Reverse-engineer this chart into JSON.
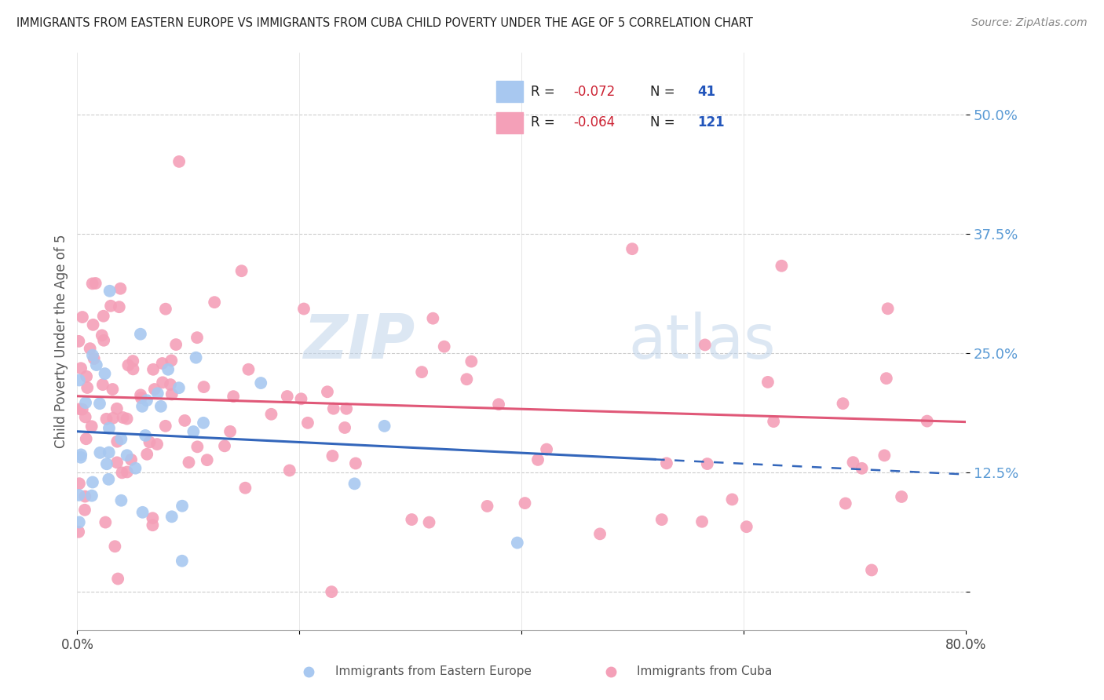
{
  "title": "IMMIGRANTS FROM EASTERN EUROPE VS IMMIGRANTS FROM CUBA CHILD POVERTY UNDER THE AGE OF 5 CORRELATION CHART",
  "source": "Source: ZipAtlas.com",
  "ylabel": "Child Poverty Under the Age of 5",
  "yticks": [
    0.0,
    0.125,
    0.25,
    0.375,
    0.5
  ],
  "ytick_labels": [
    "",
    "12.5%",
    "25.0%",
    "37.5%",
    "50.0%"
  ],
  "xlim": [
    0.0,
    0.8
  ],
  "ylim": [
    -0.04,
    0.565
  ],
  "color_eastern": "#a8c8f0",
  "color_cuba": "#f4a0b8",
  "trend_color_eastern": "#3366bb",
  "trend_color_cuba": "#e05878",
  "watermark_zip": "ZIP",
  "watermark_atlas": "atlas",
  "legend_items": [
    {
      "label_r": "R = ",
      "val_r": "-0.072",
      "label_n": "N = ",
      "val_n": " 41",
      "color": "#a8c8f0"
    },
    {
      "label_r": "R = ",
      "val_r": "-0.064",
      "label_n": "N = ",
      "val_n": "121",
      "color": "#f4a0b8"
    }
  ],
  "blue_trend_start_x": 0.0,
  "blue_trend_end_solid_x": 0.52,
  "blue_trend_end_dash_x": 0.8,
  "blue_trend_start_y": 0.168,
  "blue_trend_end_y": 0.123,
  "pink_trend_start_x": 0.0,
  "pink_trend_end_x": 0.8,
  "pink_trend_start_y": 0.205,
  "pink_trend_end_y": 0.178,
  "grid_color": "#cccccc",
  "grid_linestyle": "--",
  "bottom_legend_eastern": "Immigrants from Eastern Europe",
  "bottom_legend_cuba": "Immigrants from Cuba"
}
